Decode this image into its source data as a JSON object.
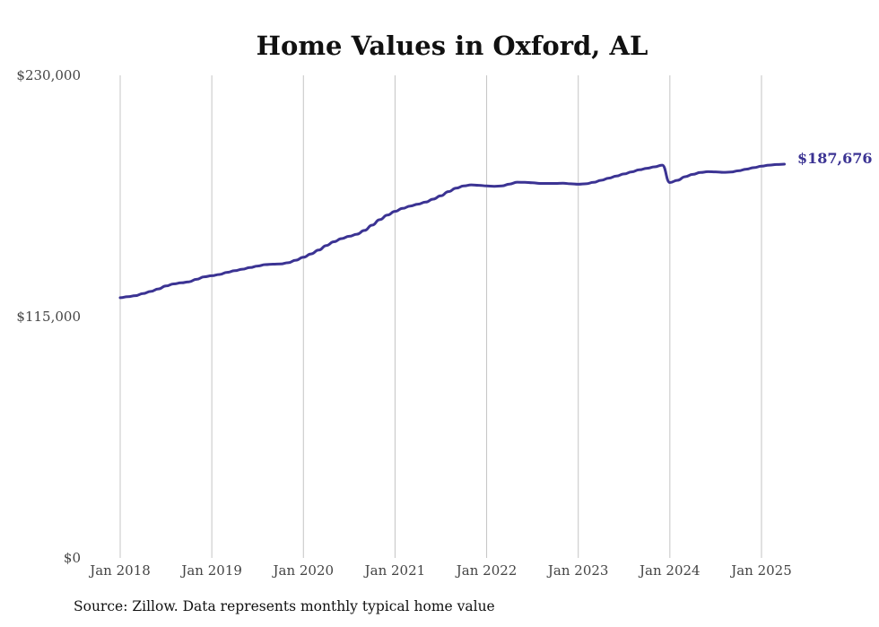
{
  "chart_data": {
    "type": "line",
    "title": "Home Values in Oxford, AL",
    "xlabel": "",
    "ylabel": "",
    "ylim": [
      0,
      230000
    ],
    "yticks": [
      {
        "value": 0,
        "label": "$0"
      },
      {
        "value": 115000,
        "label": "$115,000"
      },
      {
        "value": 230000,
        "label": "$230,000"
      }
    ],
    "xticks": [
      {
        "year": 2018,
        "label": "Jan 2018"
      },
      {
        "year": 2019,
        "label": "Jan 2019"
      },
      {
        "year": 2020,
        "label": "Jan 2020"
      },
      {
        "year": 2021,
        "label": "Jan 2021"
      },
      {
        "year": 2022,
        "label": "Jan 2022"
      },
      {
        "year": 2023,
        "label": "Jan 2023"
      },
      {
        "year": 2024,
        "label": "Jan 2024"
      },
      {
        "year": 2025,
        "label": "Jan 2025"
      }
    ],
    "grid": {
      "vertical": true,
      "horizontal": false
    },
    "line_color": "#3b3393",
    "series": [
      {
        "points": [
          [
            "2018-01",
            124000
          ],
          [
            "2018-02",
            124500
          ],
          [
            "2018-03",
            125000
          ],
          [
            "2018-04",
            126000
          ],
          [
            "2018-05",
            127000
          ],
          [
            "2018-06",
            128200
          ],
          [
            "2018-07",
            129600
          ],
          [
            "2018-08",
            130600
          ],
          [
            "2018-09",
            131100
          ],
          [
            "2018-10",
            131600
          ],
          [
            "2018-11",
            132800
          ],
          [
            "2018-12",
            134000
          ],
          [
            "2019-01",
            134500
          ],
          [
            "2019-02",
            135100
          ],
          [
            "2019-03",
            136100
          ],
          [
            "2019-04",
            136900
          ],
          [
            "2019-05",
            137600
          ],
          [
            "2019-06",
            138400
          ],
          [
            "2019-07",
            139100
          ],
          [
            "2019-08",
            139800
          ],
          [
            "2019-09",
            140000
          ],
          [
            "2019-10",
            140100
          ],
          [
            "2019-11",
            140700
          ],
          [
            "2019-12",
            141900
          ],
          [
            "2020-01",
            143300
          ],
          [
            "2020-02",
            144900
          ],
          [
            "2020-03",
            146700
          ],
          [
            "2020-04",
            148900
          ],
          [
            "2020-05",
            150700
          ],
          [
            "2020-06",
            152200
          ],
          [
            "2020-07",
            153300
          ],
          [
            "2020-08",
            154300
          ],
          [
            "2020-09",
            156100
          ],
          [
            "2020-10",
            158600
          ],
          [
            "2020-11",
            161200
          ],
          [
            "2020-12",
            163400
          ],
          [
            "2021-01",
            165200
          ],
          [
            "2021-02",
            166600
          ],
          [
            "2021-03",
            167700
          ],
          [
            "2021-04",
            168600
          ],
          [
            "2021-05",
            169600
          ],
          [
            "2021-06",
            171000
          ],
          [
            "2021-07",
            172600
          ],
          [
            "2021-08",
            174600
          ],
          [
            "2021-09",
            176200
          ],
          [
            "2021-10",
            177300
          ],
          [
            "2021-11",
            177800
          ],
          [
            "2021-12",
            177600
          ],
          [
            "2022-01",
            177300
          ],
          [
            "2022-02",
            177100
          ],
          [
            "2022-03",
            177300
          ],
          [
            "2022-04",
            178200
          ],
          [
            "2022-05",
            179100
          ],
          [
            "2022-06",
            179000
          ],
          [
            "2022-07",
            178800
          ],
          [
            "2022-08",
            178500
          ],
          [
            "2022-09",
            178500
          ],
          [
            "2022-10",
            178500
          ],
          [
            "2022-11",
            178600
          ],
          [
            "2022-12",
            178300
          ],
          [
            "2023-01",
            178100
          ],
          [
            "2023-02",
            178300
          ],
          [
            "2023-03",
            179000
          ],
          [
            "2023-04",
            180000
          ],
          [
            "2023-05",
            181000
          ],
          [
            "2023-06",
            182000
          ],
          [
            "2023-07",
            183000
          ],
          [
            "2023-08",
            184000
          ],
          [
            "2023-09",
            185000
          ],
          [
            "2023-10",
            185700
          ],
          [
            "2023-11",
            186400
          ],
          [
            "2023-12",
            187200
          ],
          [
            "2024-01",
            178900
          ],
          [
            "2024-02",
            180000
          ],
          [
            "2024-03",
            181700
          ],
          [
            "2024-04",
            182800
          ],
          [
            "2024-05",
            183700
          ],
          [
            "2024-06",
            184100
          ],
          [
            "2024-07",
            184000
          ],
          [
            "2024-08",
            183800
          ],
          [
            "2024-09",
            183900
          ],
          [
            "2024-10",
            184500
          ],
          [
            "2024-11",
            185300
          ],
          [
            "2024-12",
            186000
          ],
          [
            "2025-01",
            186700
          ],
          [
            "2025-02",
            187200
          ],
          [
            "2025-03",
            187500
          ],
          [
            "2025-04",
            187676
          ]
        ]
      }
    ],
    "end_label": "$187,676",
    "source": "Source: Zillow. Data represents monthly typical home value"
  }
}
